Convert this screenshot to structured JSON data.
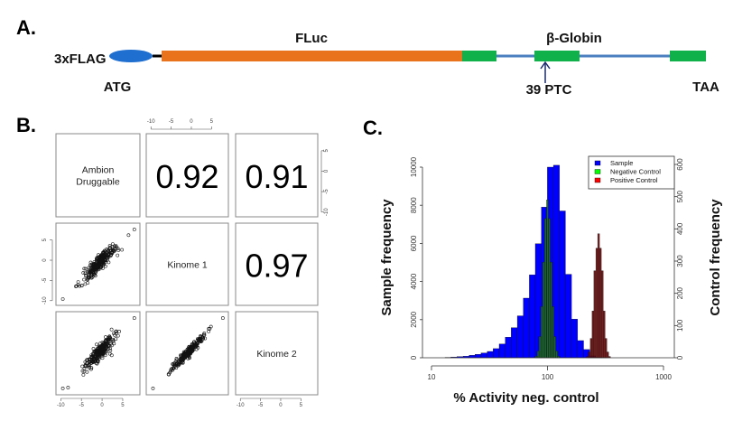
{
  "panel_a": {
    "label": "A.",
    "tag": "3xFLAG",
    "start_codon": "ATG",
    "gene": "FLuc",
    "intron_region": "β-Globin",
    "ptc": "39 PTC",
    "stop_codon": "TAA",
    "colors": {
      "flag": "#1f6fd0",
      "fluc": "#e8731c",
      "exon": "#10b04a",
      "intron": "#4a7fbf",
      "ptc": "#e8141e"
    }
  },
  "panel_b": {
    "label": "B.",
    "variables": [
      "Ambion\nDruggable",
      "Kinome 1",
      "Kinome 2"
    ],
    "variable_lines": [
      [
        "Ambion",
        "Druggable"
      ],
      [
        "Kinome 1"
      ],
      [
        "Kinome 2"
      ]
    ],
    "correlations": {
      "ambion_kinome1": "0.92",
      "ambion_kinome2": "0.91",
      "kinome1_kinome2": "0.97"
    },
    "axis_ticks": [
      "-10",
      "-5",
      "0",
      "5"
    ]
  },
  "chart_data": {
    "type": "bar",
    "label": "C.",
    "xlabel": "% Activity neg. control",
    "ylabel": "Sample frequency",
    "ylabel_right": "Control frequency",
    "x_scale": "log",
    "xlim": [
      10,
      1000
    ],
    "x_ticks": [
      "10",
      "100",
      "1000"
    ],
    "ylim": [
      0,
      10000
    ],
    "y_ticks": [
      "0",
      "2000",
      "4000",
      "6000",
      "8000",
      "10000"
    ],
    "ylim_right": [
      0,
      600
    ],
    "y_ticks_right": [
      "0",
      "100",
      "200",
      "300",
      "400",
      "500",
      "600"
    ],
    "legend_position": "top-right",
    "series": [
      {
        "name": "Sample",
        "axis": "left",
        "color": "#0000ff",
        "bin_ratio": 1.127,
        "x": [
          13.9,
          15.6,
          17.6,
          19.9,
          22.4,
          25.2,
          28.4,
          32.1,
          36.1,
          40.7,
          45.9,
          51.7,
          58.3,
          65.7,
          74.0,
          83.4,
          94.0,
          106,
          119.5,
          134.6,
          151.7,
          171,
          192.7,
          217.2,
          244.8,
          275.9,
          311
        ],
        "values": [
          20,
          40,
          60,
          80,
          130,
          180,
          250,
          330,
          480,
          720,
          1080,
          1580,
          2200,
          3130,
          4350,
          5980,
          7900,
          10000,
          10100,
          7700,
          4380,
          2030,
          900,
          430,
          100,
          30,
          10
        ]
      },
      {
        "name": "Negative Control",
        "axis": "right",
        "color": "#00ff00",
        "bar_color": "#1e6b1e",
        "bin_ratio": 1.037,
        "x": [
          80.0,
          83.0,
          86.1,
          89.3,
          92.6,
          96.0,
          100,
          103.7,
          107.5,
          111.5,
          115.6,
          119.9,
          124.4
        ],
        "values": [
          5,
          21,
          66,
          159,
          297,
          432,
          490,
          432,
          297,
          159,
          66,
          21,
          5
        ]
      },
      {
        "name": "Positive Control",
        "axis": "right",
        "color": "#ff0000",
        "bar_color": "#6b0a0a",
        "bin_ratio": 1.037,
        "x": [
          221,
          229,
          238,
          247,
          256,
          266,
          276,
          286,
          297,
          308,
          319,
          331,
          343
        ],
        "values": [
          4,
          18,
          60,
          145,
          270,
          340,
          385,
          340,
          270,
          145,
          60,
          18,
          4
        ]
      }
    ]
  }
}
